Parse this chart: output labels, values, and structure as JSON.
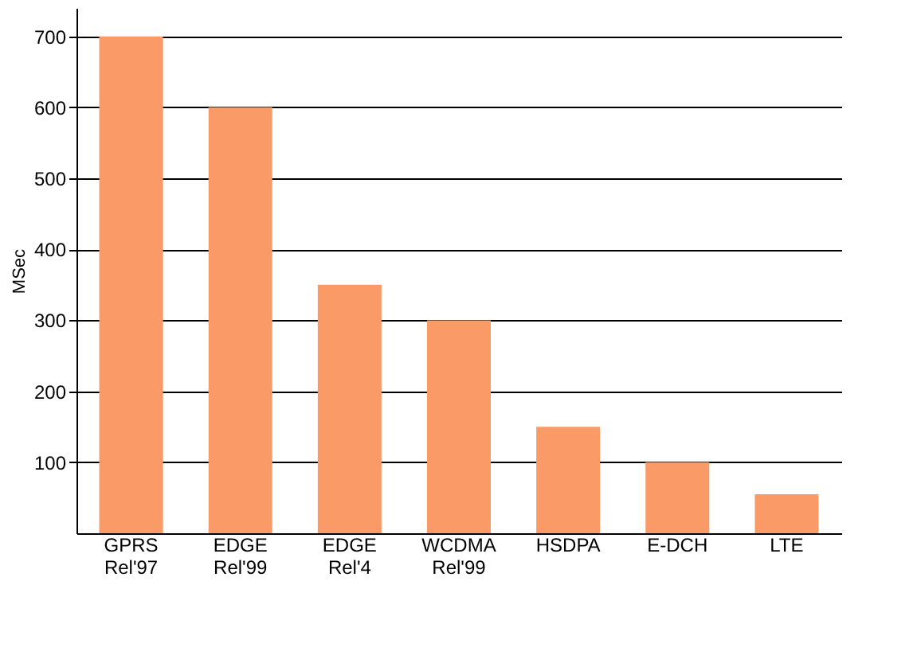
{
  "chart_data": {
    "type": "bar",
    "ylabel": "MSec",
    "categories": [
      "GPRS Rel'97",
      "EDGE Rel'99",
      "EDGE Rel'4",
      "WCDMA Rel'99",
      "HSDPA",
      "E-DCH",
      "LTE"
    ],
    "values": [
      700,
      600,
      350,
      300,
      150,
      100,
      55
    ],
    "color": "#fa9a66",
    "ylim": [
      0,
      740
    ],
    "yticks": [
      100,
      200,
      300,
      400,
      500,
      600,
      700
    ],
    "grid": "y"
  }
}
